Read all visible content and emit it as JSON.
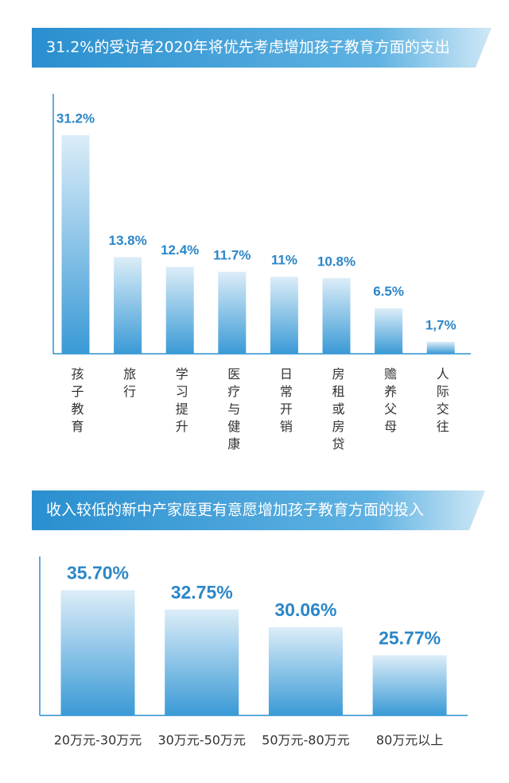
{
  "chart_data": [
    {
      "type": "bar",
      "title": "31.2%的受访者2020年将优先考虑增加孩子教育方面的支出",
      "categories": [
        "孩子教育",
        "旅行",
        "学习提升",
        "医疗与健康",
        "日常开销",
        "房租或房贷",
        "赡养父母",
        "人际交往"
      ],
      "values": [
        31.2,
        13.8,
        12.4,
        11.7,
        11,
        10.8,
        6.5,
        1.7
      ],
      "value_labels": [
        "31.2%",
        "13.8%",
        "12.4%",
        "11.7%",
        "11%",
        "10.8%",
        "6.5%",
        "1,7%"
      ],
      "ylim": [
        0,
        32
      ],
      "color": "#3a9ad6"
    },
    {
      "type": "bar",
      "title": "收入较低的新中产家庭更有意愿增加孩子教育方面的投入",
      "categories": [
        "20万元-30万元",
        "30万元-50万元",
        "50万元-80万元",
        "80万元以上"
      ],
      "values": [
        35.7,
        32.75,
        30.06,
        25.77
      ],
      "value_labels": [
        "35.70%",
        "32.75%",
        "30.06%",
        "25.77%"
      ],
      "ylim": [
        16.6,
        36
      ],
      "color": "#3a9ad6"
    }
  ]
}
